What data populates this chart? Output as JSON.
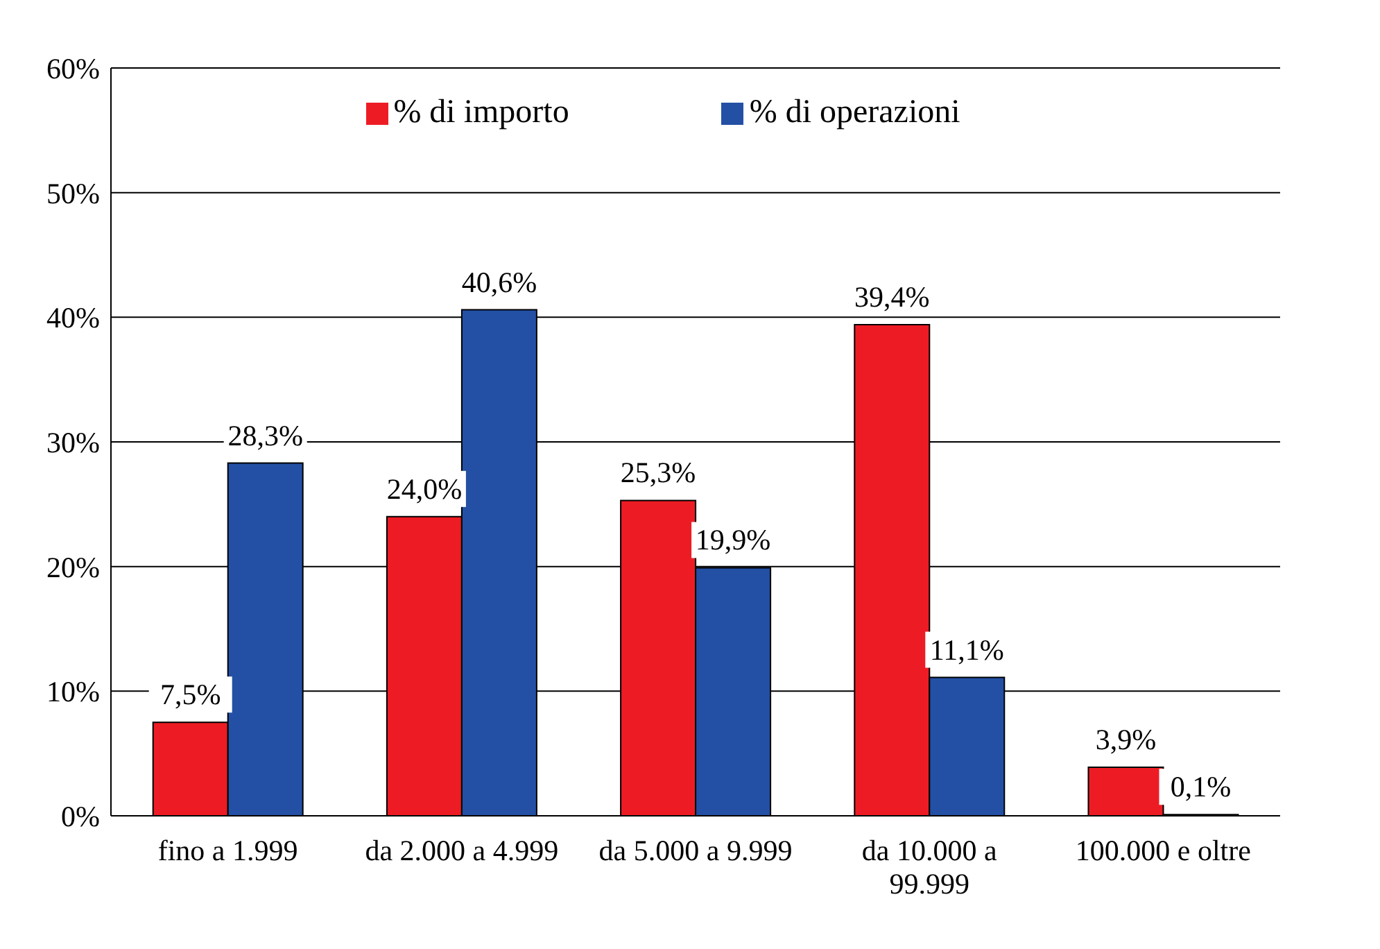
{
  "chart_data": {
    "type": "bar",
    "categories": [
      "fino a 1.999",
      "da 2.000 a 4.999",
      "da 5.000 a 9.999",
      "da 10.000 a 99.999",
      "100.000 e oltre"
    ],
    "series": [
      {
        "name": "% di importo",
        "color": "#ed1c24",
        "values": [
          7.5,
          24.0,
          25.3,
          39.4,
          3.9
        ],
        "value_labels": [
          "7,5%",
          "24,0%",
          "25,3%",
          "39,4%",
          "3,9%"
        ]
      },
      {
        "name": "% di operazioni",
        "color": "#2350a5",
        "values": [
          28.3,
          40.6,
          19.9,
          11.1,
          0.1
        ],
        "value_labels": [
          "28,3%",
          "40,6%",
          "19,9%",
          "11,1%",
          "0,1%"
        ]
      }
    ],
    "ylim": [
      0,
      60
    ],
    "yticks": [
      {
        "value": 0,
        "label": "0%"
      },
      {
        "value": 10,
        "label": "10%"
      },
      {
        "value": 20,
        "label": "20%"
      },
      {
        "value": 30,
        "label": "30%"
      },
      {
        "value": 40,
        "label": "40%"
      },
      {
        "value": 50,
        "label": "50%"
      },
      {
        "value": 60,
        "label": "60%"
      }
    ],
    "grid": "y",
    "legend": "top"
  }
}
